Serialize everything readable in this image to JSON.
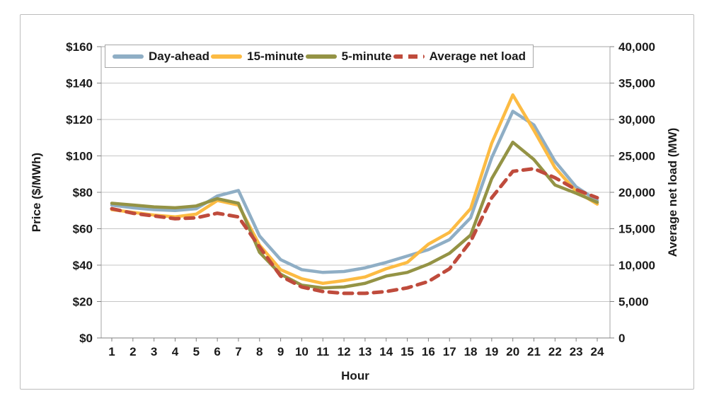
{
  "chart_data": {
    "type": "line",
    "x": [
      1,
      2,
      3,
      4,
      5,
      6,
      7,
      8,
      9,
      10,
      11,
      12,
      13,
      14,
      15,
      16,
      17,
      18,
      19,
      20,
      21,
      22,
      23,
      24
    ],
    "xlabel": "Hour",
    "ylabel_left": "Price ($/MWh)",
    "ylabel_right": "Average net load (MW)",
    "ylim_left": [
      0,
      160
    ],
    "ylim_right": [
      0,
      40000
    ],
    "y_ticks_left": [
      "$0",
      "$20",
      "$40",
      "$60",
      "$80",
      "$100",
      "$120",
      "$140",
      "$160"
    ],
    "y_ticks_right": [
      "0",
      "5,000",
      "10,000",
      "15,000",
      "20,000",
      "25,000",
      "30,000",
      "35,000",
      "40,000"
    ],
    "grid": true,
    "legend_position": "top",
    "series": [
      {
        "name": "Day-ahead",
        "axis": "left",
        "color": "#8FAEC5",
        "style": "solid",
        "values": [
          73,
          71.5,
          70.5,
          70,
          71,
          78,
          81,
          56,
          43,
          37.5,
          36,
          36.5,
          38.5,
          41.5,
          45,
          48.5,
          54,
          66,
          99,
          124.5,
          117,
          97,
          83,
          75.5
        ]
      },
      {
        "name": "15-minute",
        "axis": "left",
        "color": "#FCBB43",
        "style": "solid",
        "values": [
          70.5,
          69,
          67.5,
          66.5,
          68,
          75.5,
          73,
          51,
          37.5,
          32.5,
          30,
          31.5,
          33.5,
          38,
          41.5,
          51.5,
          58,
          71,
          107,
          133.5,
          114,
          93.5,
          80.5,
          73.5
        ]
      },
      {
        "name": "5-minute",
        "axis": "left",
        "color": "#949345",
        "style": "solid",
        "values": [
          74,
          73,
          72,
          71.5,
          72.5,
          76.5,
          74,
          47,
          35,
          29,
          27.5,
          28,
          30,
          34,
          36,
          40.5,
          46.5,
          56.5,
          87.5,
          107.5,
          98,
          84,
          79.5,
          74.5
        ]
      },
      {
        "name": "Average net load",
        "axis": "right",
        "color": "#BF4B3C",
        "style": "dashed",
        "values": [
          17750,
          17125,
          16750,
          16375,
          16500,
          17125,
          16625,
          12500,
          8500,
          7000,
          6375,
          6125,
          6125,
          6375,
          6875,
          7750,
          9500,
          13250,
          19250,
          22875,
          23250,
          22000,
          20375,
          19250
        ]
      }
    ],
    "colors": {
      "gridline": "#C6C6C6",
      "plot_border": "#A6A6A6",
      "axis_line": "#808080",
      "text": "#1a1a1a"
    }
  }
}
